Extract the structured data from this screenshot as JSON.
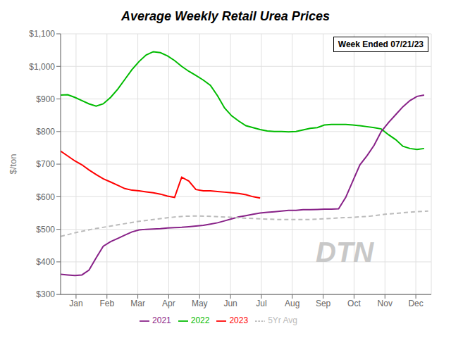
{
  "chart_data": {
    "type": "line",
    "title": "Average Weekly Retail Urea Prices",
    "y_label": "$/ton",
    "annotations": [
      "Week Ended 07/21/23",
      "DTN"
    ],
    "xlim": [
      0,
      12
    ],
    "xticks": [
      {
        "value": 0.5,
        "label": "Jan"
      },
      {
        "value": 1.5,
        "label": "Feb"
      },
      {
        "value": 2.5,
        "label": "Mar"
      },
      {
        "value": 3.5,
        "label": "Apr"
      },
      {
        "value": 4.5,
        "label": "May"
      },
      {
        "value": 5.5,
        "label": "Jun"
      },
      {
        "value": 6.5,
        "label": "Jul"
      },
      {
        "value": 7.5,
        "label": "Aug"
      },
      {
        "value": 8.5,
        "label": "Sep"
      },
      {
        "value": 9.5,
        "label": "Oct"
      },
      {
        "value": 10.5,
        "label": "Nov"
      },
      {
        "value": 11.5,
        "label": "Dec"
      }
    ],
    "ylim": [
      300,
      1100
    ],
    "yticks": [
      {
        "value": 300,
        "label": "$300"
      },
      {
        "value": 400,
        "label": "$400"
      },
      {
        "value": 500,
        "label": "$500"
      },
      {
        "value": 600,
        "label": "$600"
      },
      {
        "value": 700,
        "label": "$700"
      },
      {
        "value": 800,
        "label": "$800"
      },
      {
        "value": 900,
        "label": "$900"
      },
      {
        "value": 1000,
        "label": "$1,000"
      },
      {
        "value": 1100,
        "label": "$1,100"
      }
    ],
    "grid": true,
    "legend": "bottom",
    "series": [
      {
        "name": "2023",
        "color": "#ff0000",
        "line_style": "solid",
        "x": [
          0.0,
          0.23,
          0.46,
          0.69,
          0.92,
          1.15,
          1.38,
          1.62,
          1.85,
          2.08,
          2.31,
          2.54,
          2.77,
          3.0,
          3.23,
          3.46,
          3.69,
          3.92,
          4.15,
          4.38,
          4.62,
          4.85,
          5.08,
          5.31,
          5.54,
          5.77,
          6.0,
          6.23,
          6.46
        ],
        "values": [
          740,
          725,
          710,
          698,
          682,
          668,
          655,
          645,
          635,
          625,
          620,
          618,
          615,
          612,
          608,
          602,
          598,
          660,
          648,
          622,
          618,
          618,
          616,
          614,
          612,
          610,
          606,
          600,
          596
        ]
      },
      {
        "name": "2022",
        "color": "#00bb00",
        "line_style": "solid",
        "x": [
          0.0,
          0.23,
          0.46,
          0.69,
          0.92,
          1.15,
          1.38,
          1.62,
          1.85,
          2.08,
          2.31,
          2.54,
          2.77,
          3.0,
          3.23,
          3.46,
          3.69,
          3.92,
          4.15,
          4.38,
          4.62,
          4.85,
          5.08,
          5.31,
          5.54,
          5.77,
          6.0,
          6.23,
          6.46,
          6.69,
          6.92,
          7.15,
          7.38,
          7.62,
          7.85,
          8.08,
          8.31,
          8.54,
          8.77,
          9.0,
          9.23,
          9.46,
          9.69,
          9.92,
          10.15,
          10.38,
          10.62,
          10.85,
          11.08,
          11.31,
          11.54,
          11.77
        ],
        "values": [
          912,
          913,
          905,
          895,
          885,
          878,
          885,
          905,
          930,
          960,
          990,
          1015,
          1035,
          1045,
          1042,
          1032,
          1018,
          1000,
          985,
          972,
          958,
          942,
          910,
          872,
          848,
          832,
          818,
          812,
          806,
          802,
          800,
          800,
          799,
          800,
          805,
          810,
          812,
          820,
          822,
          822,
          822,
          820,
          818,
          815,
          812,
          808,
          790,
          775,
          755,
          748,
          745,
          748
        ]
      },
      {
        "name": "2021",
        "color": "#882288",
        "line_style": "solid",
        "x": [
          0.0,
          0.23,
          0.46,
          0.69,
          0.92,
          1.15,
          1.38,
          1.62,
          1.85,
          2.08,
          2.31,
          2.54,
          2.77,
          3.0,
          3.23,
          3.46,
          3.69,
          3.92,
          4.15,
          4.38,
          4.62,
          4.85,
          5.08,
          5.31,
          5.54,
          5.77,
          6.0,
          6.23,
          6.46,
          6.69,
          6.92,
          7.15,
          7.38,
          7.62,
          7.85,
          8.08,
          8.31,
          8.54,
          8.77,
          9.0,
          9.23,
          9.46,
          9.69,
          9.92,
          10.15,
          10.38,
          10.62,
          10.85,
          11.08,
          11.31,
          11.54,
          11.77
        ],
        "values": [
          362,
          360,
          358,
          360,
          375,
          412,
          448,
          462,
          472,
          482,
          492,
          498,
          500,
          501,
          502,
          504,
          505,
          506,
          508,
          510,
          512,
          516,
          520,
          526,
          532,
          538,
          542,
          546,
          550,
          552,
          554,
          556,
          558,
          558,
          560,
          560,
          561,
          562,
          562,
          563,
          598,
          648,
          698,
          726,
          758,
          800,
          828,
          852,
          876,
          895,
          908,
          912
        ]
      },
      {
        "name": "5Yr Avg",
        "color": "#bbbbbb",
        "line_style": "dashed",
        "x": [
          0.0,
          0.5,
          1.0,
          1.5,
          2.0,
          2.5,
          3.0,
          3.5,
          4.0,
          4.5,
          5.0,
          5.5,
          6.0,
          6.5,
          7.0,
          7.5,
          8.0,
          8.5,
          9.0,
          9.5,
          10.0,
          10.5,
          11.0,
          11.5,
          11.9
        ],
        "values": [
          478,
          490,
          500,
          508,
          516,
          524,
          530,
          536,
          540,
          541,
          539,
          537,
          534,
          532,
          530,
          530,
          530,
          532,
          535,
          537,
          540,
          546,
          550,
          554,
          556
        ]
      }
    ]
  }
}
